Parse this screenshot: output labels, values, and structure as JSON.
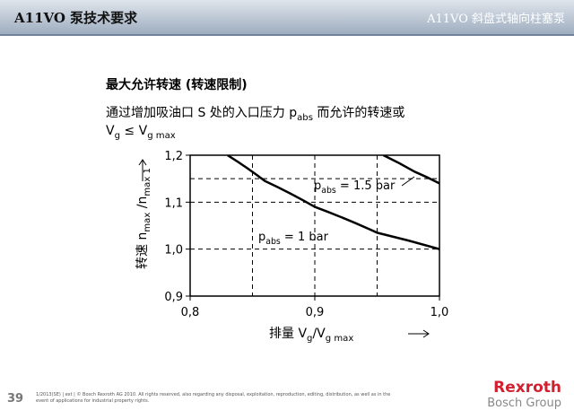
{
  "header": {
    "left": "A11VO 泵技术要求",
    "right": "A11VO  斜盘式轴向柱塞泵"
  },
  "heading": "最大允许转速 (转速限制)",
  "desc1": {
    "a": "通过增加吸油口 S 处的入口压力 p",
    "sub": "abs",
    "b": " 而允许的转速或"
  },
  "desc2": {
    "a": "V",
    "sub1": "g",
    "b": " ≤ V",
    "sub2": "g max"
  },
  "chart_data": {
    "type": "line",
    "x_label": {
      "a": "排量 V",
      "sub1": "g",
      "b": "/V",
      "sub2": "g max"
    },
    "y_label": {
      "a": "转速 n",
      "sub1": "max",
      "b": " /n",
      "sub2": "max 1"
    },
    "xlim": [
      0.8,
      1.0
    ],
    "ylim": [
      0.9,
      1.2
    ],
    "xticks": [
      {
        "value": 0.8,
        "label": "0,8"
      },
      {
        "value": 0.9,
        "label": "0,9"
      },
      {
        "value": 1.0,
        "label": "1,0"
      }
    ],
    "yticks": [
      {
        "value": 0.9,
        "label": "0,9"
      },
      {
        "value": 1.0,
        "label": "1,0"
      },
      {
        "value": 1.1,
        "label": "1,1"
      },
      {
        "value": 1.2,
        "label": "1,2"
      }
    ],
    "xgrid": [
      0.85,
      0.9,
      0.95
    ],
    "ygrid": [
      1.0,
      1.1,
      1.15
    ],
    "series": [
      {
        "name": {
          "a": "p",
          "sub": "abs",
          "b": " = 1 bar"
        },
        "color": "#000000",
        "x": [
          0.83,
          0.86,
          0.9,
          0.95,
          1.0
        ],
        "values": [
          1.2,
          1.145,
          1.09,
          1.035,
          1.0
        ]
      },
      {
        "name": {
          "a": "p",
          "sub": "abs",
          "b": " = 1.5 bar"
        },
        "color": "#000000",
        "x": [
          0.955,
          0.98,
          1.0
        ],
        "values": [
          1.2,
          1.165,
          1.14
        ]
      }
    ]
  },
  "footer": {
    "page": "39",
    "note1": "1/2013(SE) | ext | © Bosch Rexroth AG 2010. All rights reserved, also regarding any disposal, exploitation, reproduction, editing, distribution, as well as in the",
    "note2": "event of applications for industrial property rights.",
    "brand": "Rexroth",
    "group": "Bosch Group"
  }
}
